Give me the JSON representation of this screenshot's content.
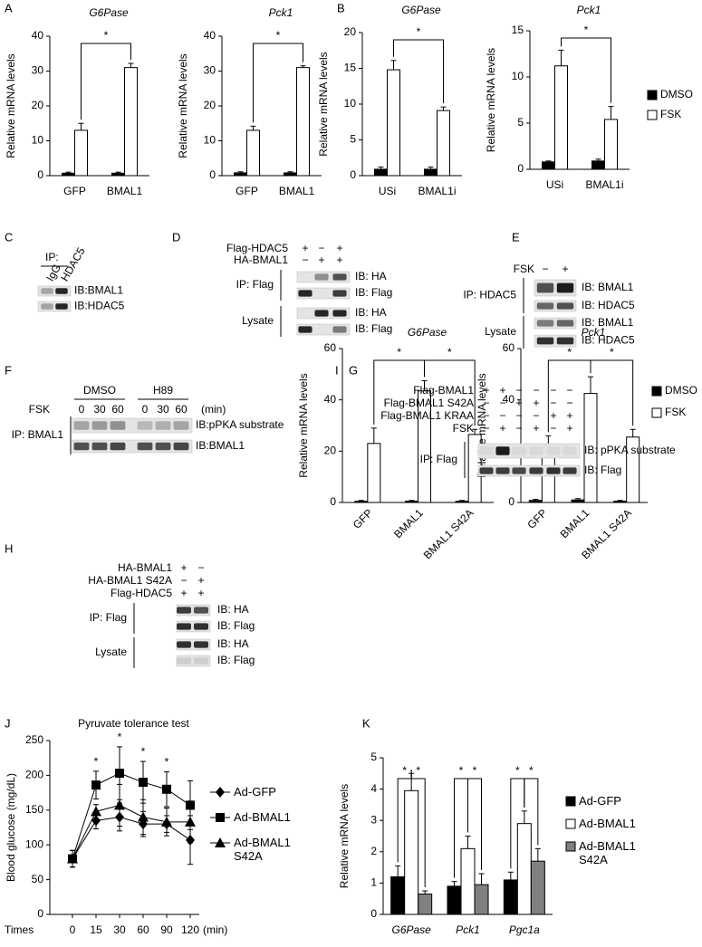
{
  "chart_data": [
    {
      "type": "bar",
      "panel": "A",
      "title": "G6Pase",
      "title_style": "italic",
      "ylabel": "Relative mRNA levels",
      "categories": [
        "GFP",
        "BMAL1"
      ],
      "series": [
        {
          "color": "#000000",
          "values": [
            0.7,
            0.7
          ],
          "errors": [
            0.3,
            0.3
          ]
        },
        {
          "color": "#ffffff",
          "values": [
            13,
            31
          ],
          "errors": [
            2,
            1.2
          ]
        }
      ],
      "ylim": [
        0,
        40
      ],
      "yticks": [
        0,
        10,
        20,
        30,
        40
      ],
      "annotations": [
        "*"
      ]
    },
    {
      "type": "bar",
      "title": "Pck1",
      "title_style": "italic",
      "ylabel": "Relative mRNA levels",
      "categories": [
        "GFP",
        "BMAL1"
      ],
      "series": [
        {
          "color": "#000000",
          "values": [
            0.8,
            0.8
          ],
          "errors": [
            0.3,
            0.3
          ]
        },
        {
          "color": "#ffffff",
          "values": [
            13,
            31
          ],
          "errors": [
            1.2,
            0.5
          ]
        }
      ],
      "ylim": [
        0,
        40
      ],
      "yticks": [
        0,
        10,
        20,
        30,
        40
      ],
      "annotations": [
        "*"
      ]
    },
    {
      "type": "bar",
      "panel": "B",
      "title": "G6Pase",
      "title_style": "italic",
      "ylabel": "Relative mRNA levels",
      "categories": [
        "USi",
        "BMAL1i"
      ],
      "series": [
        {
          "color": "#000000",
          "values": [
            0.9,
            0.9
          ],
          "errors": [
            0.3,
            0.3
          ]
        },
        {
          "color": "#ffffff",
          "values": [
            14.8,
            9.1
          ],
          "errors": [
            1.3,
            0.5
          ]
        }
      ],
      "ylim": [
        0,
        20
      ],
      "yticks": [
        0,
        5,
        10,
        15,
        20
      ],
      "annotations": [
        "*"
      ]
    },
    {
      "type": "bar",
      "title": "Pck1",
      "title_style": "italic",
      "ylabel": "Relative mRNA levels",
      "categories": [
        "USi",
        "BMAL1i"
      ],
      "series": [
        {
          "name": "DMSO",
          "color": "#000000",
          "values": [
            0.8,
            0.9
          ],
          "errors": [
            0.1,
            0.2
          ]
        },
        {
          "name": "FSK",
          "color": "#ffffff",
          "values": [
            11.2,
            5.4
          ],
          "errors": [
            1.7,
            1.4
          ]
        }
      ],
      "ylim": [
        0,
        15
      ],
      "yticks": [
        0,
        5,
        10,
        15
      ],
      "annotations": [
        "*"
      ],
      "legend": "right"
    },
    {
      "type": "bar",
      "panel": "I",
      "title": "G6Pase",
      "title_style": "italic",
      "ylabel": "Relative mRNA levels",
      "categories": [
        "GFP",
        "BMAL1",
        "BMAL1 S42A"
      ],
      "series": [
        {
          "color": "#000000",
          "values": [
            0.5,
            0.5,
            0.5
          ],
          "errors": [
            0.3,
            0.3,
            0.3
          ]
        },
        {
          "color": "#ffffff",
          "values": [
            23,
            43.5,
            26.5
          ],
          "errors": [
            6,
            4,
            2
          ]
        }
      ],
      "ylim": [
        0,
        60
      ],
      "yticks": [
        0,
        20,
        40,
        60
      ],
      "annotations": [
        "*",
        "*"
      ]
    },
    {
      "type": "bar",
      "title": "Pck1",
      "title_style": "italic",
      "ylabel": "Relative mRNA levels",
      "categories": [
        "GFP",
        "BMAL1",
        "BMAL1 S42A"
      ],
      "series": [
        {
          "name": "DMSO",
          "color": "#000000",
          "values": [
            0.8,
            1,
            0.5
          ],
          "errors": [
            0.4,
            0.5,
            0.3
          ]
        },
        {
          "name": "FSK",
          "color": "#ffffff",
          "values": [
            20.5,
            42.5,
            25.5
          ],
          "errors": [
            5.5,
            6.5,
            3
          ]
        }
      ],
      "ylim": [
        0,
        60
      ],
      "yticks": [
        0,
        20,
        40,
        60
      ],
      "annotations": [
        "*",
        "*"
      ],
      "legend": "right"
    },
    {
      "type": "line",
      "panel": "J",
      "title": "Pyruvate tolerance test",
      "ylabel": "Blood glucose (mg/dL)",
      "xlabel": "Times",
      "xunit": "(min)",
      "categories": [
        "0",
        "15",
        "30",
        "60",
        "90",
        "120"
      ],
      "series": [
        {
          "name": "Ad-GFP",
          "color": "#000000",
          "marker": "diamond",
          "values": [
            80,
            135,
            140,
            130,
            130,
            107
          ],
          "errors": [
            12,
            12,
            20,
            18,
            12,
            35
          ]
        },
        {
          "name": "Ad-BMAL1",
          "color": "#000000",
          "marker": "square",
          "values": [
            80,
            186,
            203,
            190,
            180,
            157
          ],
          "errors": [
            12,
            20,
            38,
            30,
            25,
            35
          ]
        },
        {
          "name": "Ad-BMAL1 S42A",
          "color": "#000000",
          "marker": "triangle",
          "values": [
            80,
            148,
            157,
            140,
            133,
            133
          ],
          "errors": [
            12,
            10,
            30,
            25,
            20,
            30
          ]
        }
      ],
      "ylim": [
        0,
        250
      ],
      "yticks": [
        0,
        50,
        100,
        150,
        200,
        250
      ],
      "annotations": [
        "*",
        "*",
        "*",
        "*"
      ],
      "legend": "right"
    },
    {
      "type": "bar",
      "panel": "K",
      "ylabel": "Relative mRNA levels",
      "category_style": "italic",
      "categories": [
        "G6Pase",
        "Pck1",
        "Pgc1a"
      ],
      "series": [
        {
          "name": "Ad-GFP",
          "color": "#000000",
          "values": [
            1.2,
            0.9,
            1.1
          ],
          "errors": [
            0.35,
            0.15,
            0.25
          ]
        },
        {
          "name": "Ad-BMAL1",
          "color": "#ffffff",
          "values": [
            3.95,
            2.1,
            2.9
          ],
          "errors": [
            0.55,
            0.4,
            0.4
          ]
        },
        {
          "name": "Ad-BMAL1 S42A",
          "color": "#808080",
          "values": [
            0.65,
            0.95,
            1.7
          ],
          "errors": [
            0.1,
            0.35,
            0.4
          ]
        }
      ],
      "ylim": [
        0,
        5
      ],
      "yticks": [
        0,
        1,
        2,
        3,
        4,
        5
      ],
      "annotations": [
        "*",
        "*",
        "*",
        "*",
        "*",
        "*"
      ],
      "legend": "right"
    }
  ],
  "blots": [
    {
      "panel": "C",
      "header": "IP:",
      "lanes": [
        "IgG",
        "HDAC5"
      ],
      "groups": [
        {
          "rows": [
            "IB:BMAL1",
            "IB:HDAC5"
          ]
        }
      ]
    },
    {
      "panel": "D",
      "conditions": [
        {
          "name": "Flag-HDAC5",
          "signs": [
            "+",
            "−",
            "+"
          ]
        },
        {
          "name": "HA-BMAL1",
          "signs": [
            "−",
            "+",
            "+"
          ]
        }
      ],
      "groups": [
        {
          "name": "IP: Flag",
          "rows": [
            "IB: HA",
            "IB: Flag"
          ]
        },
        {
          "name": "Lysate",
          "rows": [
            "IB: HA",
            "IB: Flag"
          ]
        }
      ]
    },
    {
      "panel": "E",
      "conditions": [
        {
          "name": "FSK",
          "signs": [
            "−",
            "+"
          ]
        }
      ],
      "groups": [
        {
          "name": "IP: HDAC5",
          "rows": [
            "IB: BMAL1",
            "IB: HDAC5"
          ]
        },
        {
          "name": "Lysate",
          "rows": [
            "IB: BMAL1",
            "IB: HDAC5"
          ]
        }
      ]
    },
    {
      "panel": "F",
      "treatments": [
        "DMSO",
        "H89"
      ],
      "conditions": [
        {
          "name": "FSK",
          "signs": [
            "0",
            "30",
            "60",
            "0",
            "30",
            "60"
          ]
        }
      ],
      "unit": "(min)",
      "groups": [
        {
          "name": "IP: BMAL1",
          "rows": [
            "IB:pPKA substrate",
            "IB:BMAL1"
          ]
        }
      ]
    },
    {
      "panel": "G",
      "conditions": [
        {
          "name": "Flag-BMAL1",
          "signs": [
            "+",
            "+",
            "−",
            "−",
            "−",
            "−"
          ]
        },
        {
          "name": "Flag-BMAL1 S42A",
          "signs": [
            "−",
            "−",
            "+",
            "+",
            "−",
            "−"
          ]
        },
        {
          "name": "Flag-BMAL1 KRAA",
          "signs": [
            "−",
            "−",
            "−",
            "−",
            "+",
            "+"
          ]
        },
        {
          "name": "FSK",
          "signs": [
            "−",
            "+",
            "−",
            "+",
            "−",
            "+"
          ]
        }
      ],
      "groups": [
        {
          "name": "IP: Flag",
          "rows": [
            "IB: pPKA substrate",
            "IB: Flag"
          ]
        }
      ]
    },
    {
      "panel": "H",
      "conditions": [
        {
          "name": "HA-BMAL1",
          "signs": [
            "+",
            "−"
          ]
        },
        {
          "name": "HA-BMAL1 S42A",
          "signs": [
            "−",
            "+"
          ]
        },
        {
          "name": "Flag-HDAC5",
          "signs": [
            "+",
            "+"
          ]
        }
      ],
      "groups": [
        {
          "name": "IP: Flag",
          "rows": [
            "IB: HA",
            "IB: Flag"
          ]
        },
        {
          "name": "Lysate",
          "rows": [
            "IB: HA",
            "IB: Flag"
          ]
        }
      ]
    }
  ]
}
